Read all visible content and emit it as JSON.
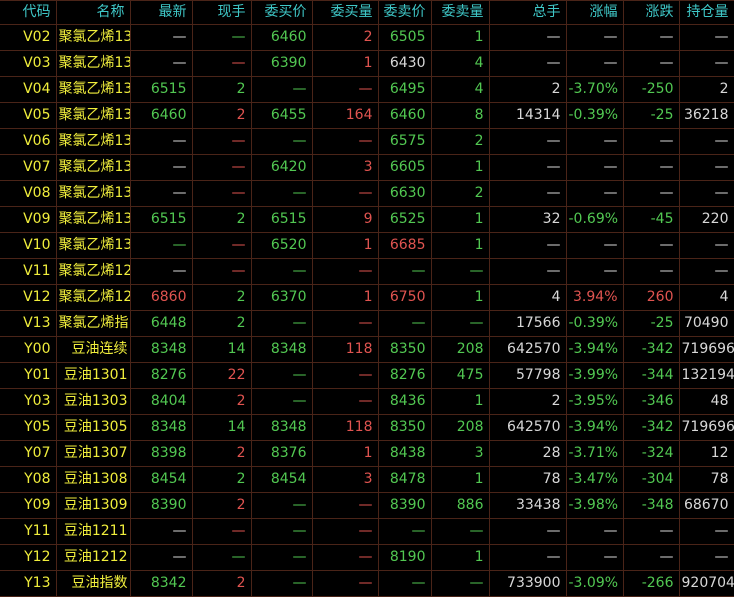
{
  "colors": {
    "header": "#3fc8c8",
    "code": "#f0ee3c",
    "up": "#e05450",
    "down": "#52c852",
    "neutral": "#d8d8d8",
    "grid": "#4a2418"
  },
  "headers": [
    "代码",
    "名称",
    "最新",
    "现手",
    "委买价",
    "委买量",
    "委卖价",
    "委卖量",
    "总手",
    "涨幅",
    "涨跌",
    "持仓量"
  ],
  "rows": [
    {
      "code": "V02",
      "name": "聚氯乙烯13",
      "cells": [
        [
          "—",
          "w"
        ],
        [
          "—",
          "g"
        ],
        [
          "6460",
          "g"
        ],
        [
          "2",
          "r"
        ],
        [
          "6505",
          "g"
        ],
        [
          "1",
          "g"
        ],
        [
          "—",
          "w"
        ],
        [
          "—",
          "w"
        ],
        [
          "—",
          "w"
        ],
        [
          "—",
          "w"
        ]
      ]
    },
    {
      "code": "V03",
      "name": "聚氯乙烯13",
      "cells": [
        [
          "—",
          "w"
        ],
        [
          "—",
          "r"
        ],
        [
          "6390",
          "g"
        ],
        [
          "1",
          "r"
        ],
        [
          "6430",
          "w"
        ],
        [
          "4",
          "g"
        ],
        [
          "—",
          "w"
        ],
        [
          "—",
          "w"
        ],
        [
          "—",
          "w"
        ],
        [
          "—",
          "w"
        ]
      ]
    },
    {
      "code": "V04",
      "name": "聚氯乙烯13",
      "cells": [
        [
          "6515",
          "g"
        ],
        [
          "2",
          "g"
        ],
        [
          "—",
          "g"
        ],
        [
          "—",
          "r"
        ],
        [
          "6495",
          "g"
        ],
        [
          "4",
          "g"
        ],
        [
          "2",
          "w"
        ],
        [
          "-3.70%",
          "g"
        ],
        [
          "-250",
          "g"
        ],
        [
          "2",
          "w"
        ]
      ]
    },
    {
      "code": "V05",
      "name": "聚氯乙烯13",
      "cells": [
        [
          "6460",
          "g"
        ],
        [
          "2",
          "r"
        ],
        [
          "6455",
          "g"
        ],
        [
          "164",
          "r"
        ],
        [
          "6460",
          "g"
        ],
        [
          "8",
          "g"
        ],
        [
          "14314",
          "w"
        ],
        [
          "-0.39%",
          "g"
        ],
        [
          "-25",
          "g"
        ],
        [
          "36218",
          "w"
        ]
      ]
    },
    {
      "code": "V06",
      "name": "聚氯乙烯13",
      "cells": [
        [
          "—",
          "w"
        ],
        [
          "—",
          "r"
        ],
        [
          "—",
          "g"
        ],
        [
          "—",
          "r"
        ],
        [
          "6575",
          "g"
        ],
        [
          "2",
          "g"
        ],
        [
          "—",
          "w"
        ],
        [
          "—",
          "w"
        ],
        [
          "—",
          "w"
        ],
        [
          "—",
          "w"
        ]
      ]
    },
    {
      "code": "V07",
      "name": "聚氯乙烯13",
      "cells": [
        [
          "—",
          "w"
        ],
        [
          "—",
          "r"
        ],
        [
          "6420",
          "g"
        ],
        [
          "3",
          "r"
        ],
        [
          "6605",
          "g"
        ],
        [
          "1",
          "g"
        ],
        [
          "—",
          "w"
        ],
        [
          "—",
          "w"
        ],
        [
          "—",
          "w"
        ],
        [
          "—",
          "w"
        ]
      ]
    },
    {
      "code": "V08",
      "name": "聚氯乙烯13",
      "cells": [
        [
          "—",
          "w"
        ],
        [
          "—",
          "r"
        ],
        [
          "—",
          "g"
        ],
        [
          "—",
          "r"
        ],
        [
          "6630",
          "g"
        ],
        [
          "2",
          "g"
        ],
        [
          "—",
          "w"
        ],
        [
          "—",
          "w"
        ],
        [
          "—",
          "w"
        ],
        [
          "—",
          "w"
        ]
      ]
    },
    {
      "code": "V09",
      "name": "聚氯乙烯13",
      "cells": [
        [
          "6515",
          "g"
        ],
        [
          "2",
          "g"
        ],
        [
          "6515",
          "g"
        ],
        [
          "9",
          "r"
        ],
        [
          "6525",
          "g"
        ],
        [
          "1",
          "g"
        ],
        [
          "32",
          "w"
        ],
        [
          "-0.69%",
          "g"
        ],
        [
          "-45",
          "g"
        ],
        [
          "220",
          "w"
        ]
      ]
    },
    {
      "code": "V10",
      "name": "聚氯乙烯13",
      "cells": [
        [
          "—",
          "g"
        ],
        [
          "—",
          "r"
        ],
        [
          "6520",
          "g"
        ],
        [
          "1",
          "r"
        ],
        [
          "6685",
          "r"
        ],
        [
          "1",
          "g"
        ],
        [
          "—",
          "w"
        ],
        [
          "—",
          "w"
        ],
        [
          "—",
          "w"
        ],
        [
          "—",
          "w"
        ]
      ]
    },
    {
      "code": "V11",
      "name": "聚氯乙烯12",
      "cells": [
        [
          "—",
          "w"
        ],
        [
          "—",
          "r"
        ],
        [
          "—",
          "g"
        ],
        [
          "—",
          "r"
        ],
        [
          "—",
          "g"
        ],
        [
          "—",
          "g"
        ],
        [
          "—",
          "w"
        ],
        [
          "—",
          "w"
        ],
        [
          "—",
          "w"
        ],
        [
          "—",
          "w"
        ]
      ]
    },
    {
      "code": "V12",
      "name": "聚氯乙烯12",
      "cells": [
        [
          "6860",
          "r"
        ],
        [
          "2",
          "g"
        ],
        [
          "6370",
          "g"
        ],
        [
          "1",
          "r"
        ],
        [
          "6750",
          "r"
        ],
        [
          "1",
          "g"
        ],
        [
          "4",
          "w"
        ],
        [
          "3.94%",
          "r"
        ],
        [
          "260",
          "r"
        ],
        [
          "4",
          "w"
        ]
      ]
    },
    {
      "code": "V13",
      "name": "聚氯乙烯指",
      "cells": [
        [
          "6448",
          "g"
        ],
        [
          "2",
          "g"
        ],
        [
          "—",
          "g"
        ],
        [
          "—",
          "r"
        ],
        [
          "—",
          "g"
        ],
        [
          "—",
          "g"
        ],
        [
          "17566",
          "w"
        ],
        [
          "-0.39%",
          "g"
        ],
        [
          "-25",
          "g"
        ],
        [
          "70490",
          "w"
        ]
      ]
    },
    {
      "code": "Y00",
      "name": "豆油连续",
      "cells": [
        [
          "8348",
          "g"
        ],
        [
          "14",
          "g"
        ],
        [
          "8348",
          "g"
        ],
        [
          "118",
          "r"
        ],
        [
          "8350",
          "g"
        ],
        [
          "208",
          "g"
        ],
        [
          "642570",
          "w"
        ],
        [
          "-3.94%",
          "g"
        ],
        [
          "-342",
          "g"
        ],
        [
          "719696",
          "w"
        ]
      ]
    },
    {
      "code": "Y01",
      "name": "豆油1301",
      "cells": [
        [
          "8276",
          "g"
        ],
        [
          "22",
          "r"
        ],
        [
          "—",
          "g"
        ],
        [
          "—",
          "r"
        ],
        [
          "8276",
          "g"
        ],
        [
          "475",
          "g"
        ],
        [
          "57798",
          "w"
        ],
        [
          "-3.99%",
          "g"
        ],
        [
          "-344",
          "g"
        ],
        [
          "132194",
          "w"
        ]
      ]
    },
    {
      "code": "Y03",
      "name": "豆油1303",
      "cells": [
        [
          "8404",
          "g"
        ],
        [
          "2",
          "r"
        ],
        [
          "—",
          "g"
        ],
        [
          "—",
          "r"
        ],
        [
          "8436",
          "g"
        ],
        [
          "1",
          "g"
        ],
        [
          "2",
          "w"
        ],
        [
          "-3.95%",
          "g"
        ],
        [
          "-346",
          "g"
        ],
        [
          "48",
          "w"
        ]
      ]
    },
    {
      "code": "Y05",
      "name": "豆油1305",
      "cells": [
        [
          "8348",
          "g"
        ],
        [
          "14",
          "g"
        ],
        [
          "8348",
          "g"
        ],
        [
          "118",
          "r"
        ],
        [
          "8350",
          "g"
        ],
        [
          "208",
          "g"
        ],
        [
          "642570",
          "w"
        ],
        [
          "-3.94%",
          "g"
        ],
        [
          "-342",
          "g"
        ],
        [
          "719696",
          "w"
        ]
      ]
    },
    {
      "code": "Y07",
      "name": "豆油1307",
      "cells": [
        [
          "8398",
          "g"
        ],
        [
          "2",
          "r"
        ],
        [
          "8376",
          "g"
        ],
        [
          "1",
          "r"
        ],
        [
          "8438",
          "g"
        ],
        [
          "3",
          "g"
        ],
        [
          "28",
          "w"
        ],
        [
          "-3.71%",
          "g"
        ],
        [
          "-324",
          "g"
        ],
        [
          "12",
          "w"
        ]
      ]
    },
    {
      "code": "Y08",
      "name": "豆油1308",
      "cells": [
        [
          "8454",
          "g"
        ],
        [
          "2",
          "g"
        ],
        [
          "8454",
          "g"
        ],
        [
          "3",
          "r"
        ],
        [
          "8478",
          "g"
        ],
        [
          "1",
          "g"
        ],
        [
          "78",
          "w"
        ],
        [
          "-3.47%",
          "g"
        ],
        [
          "-304",
          "g"
        ],
        [
          "78",
          "w"
        ]
      ]
    },
    {
      "code": "Y09",
      "name": "豆油1309",
      "cells": [
        [
          "8390",
          "g"
        ],
        [
          "2",
          "r"
        ],
        [
          "—",
          "g"
        ],
        [
          "—",
          "r"
        ],
        [
          "8390",
          "g"
        ],
        [
          "886",
          "g"
        ],
        [
          "33438",
          "w"
        ],
        [
          "-3.98%",
          "g"
        ],
        [
          "-348",
          "g"
        ],
        [
          "68670",
          "w"
        ]
      ]
    },
    {
      "code": "Y11",
      "name": "豆油1211",
      "cells": [
        [
          "—",
          "w"
        ],
        [
          "—",
          "r"
        ],
        [
          "—",
          "g"
        ],
        [
          "—",
          "r"
        ],
        [
          "—",
          "g"
        ],
        [
          "—",
          "g"
        ],
        [
          "—",
          "w"
        ],
        [
          "—",
          "w"
        ],
        [
          "—",
          "w"
        ],
        [
          "—",
          "w"
        ]
      ]
    },
    {
      "code": "Y12",
      "name": "豆油1212",
      "cells": [
        [
          "—",
          "w"
        ],
        [
          "—",
          "g"
        ],
        [
          "—",
          "g"
        ],
        [
          "—",
          "r"
        ],
        [
          "8190",
          "g"
        ],
        [
          "1",
          "g"
        ],
        [
          "—",
          "w"
        ],
        [
          "—",
          "w"
        ],
        [
          "—",
          "w"
        ],
        [
          "—",
          "w"
        ]
      ]
    },
    {
      "code": "Y13",
      "name": "豆油指数",
      "cells": [
        [
          "8342",
          "g"
        ],
        [
          "2",
          "r"
        ],
        [
          "—",
          "g"
        ],
        [
          "—",
          "r"
        ],
        [
          "—",
          "g"
        ],
        [
          "—",
          "g"
        ],
        [
          "733900",
          "w"
        ],
        [
          "-3.09%",
          "g"
        ],
        [
          "-266",
          "g"
        ],
        [
          "920704",
          "w"
        ]
      ]
    }
  ]
}
